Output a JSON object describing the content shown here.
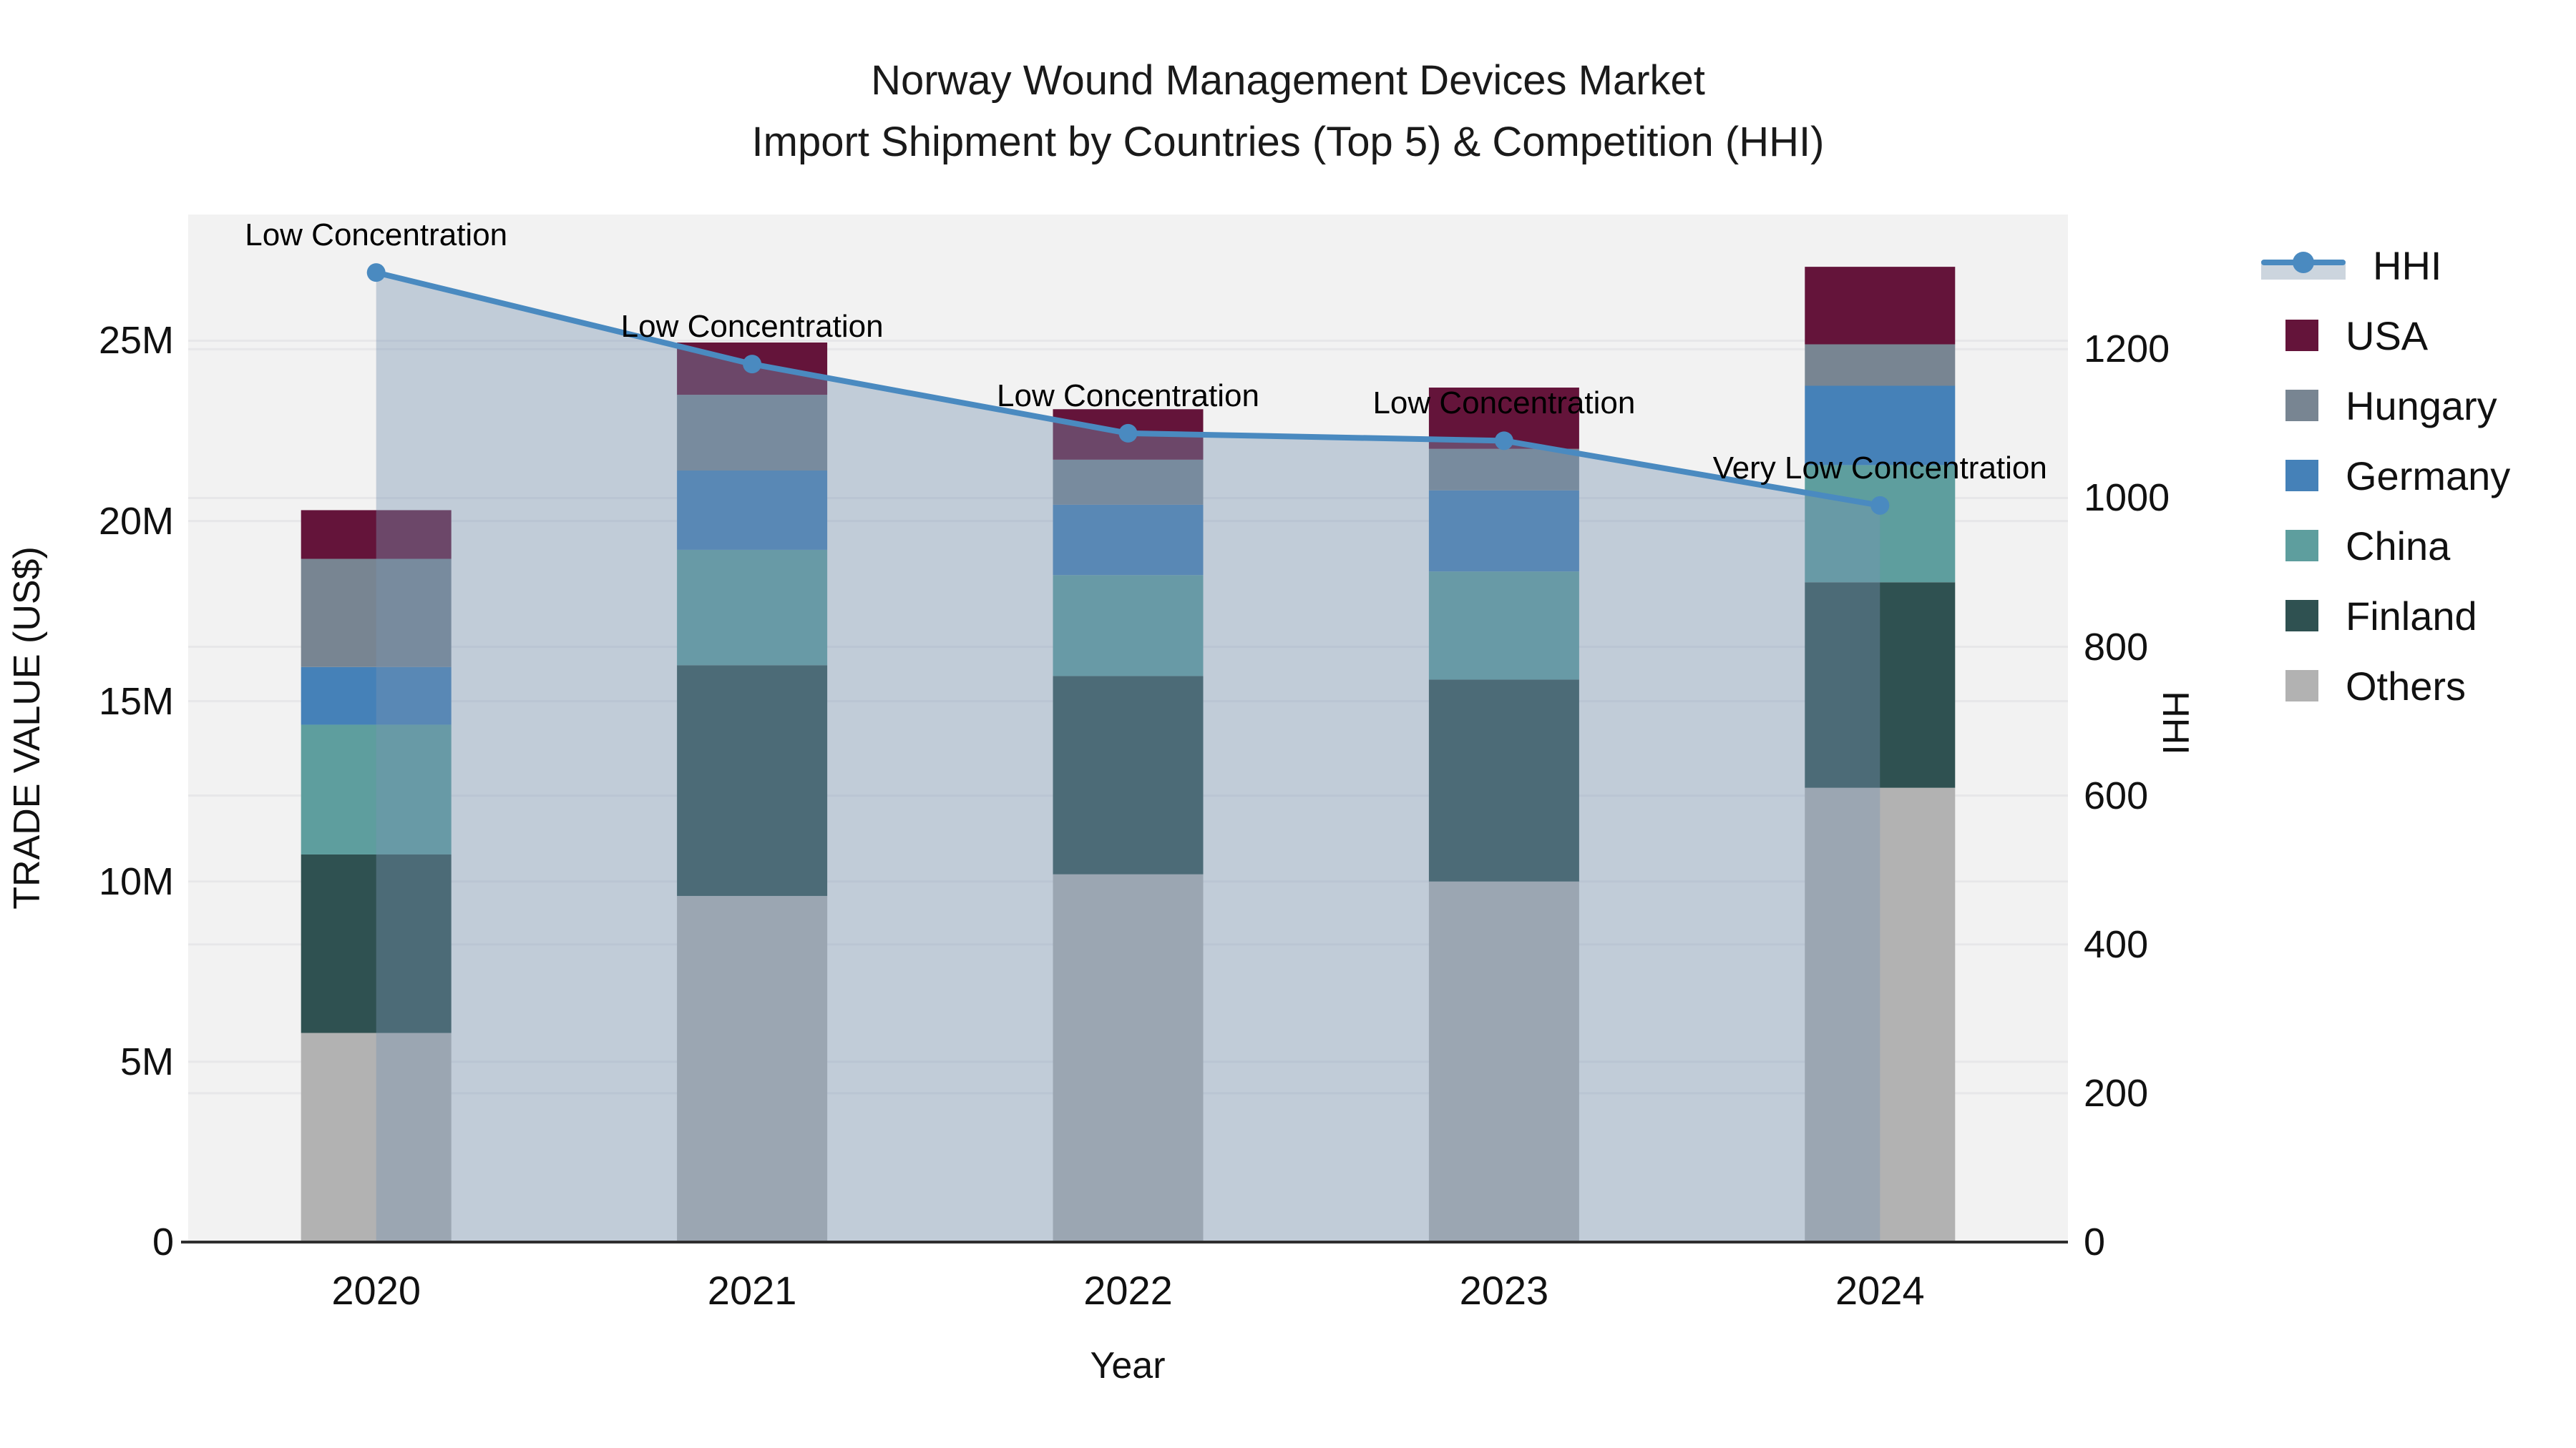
{
  "title": {
    "line1": "Norway Wound Management Devices Market",
    "line2": "Import Shipment by Countries (Top 5) & Competition (HHI)"
  },
  "axes": {
    "x": {
      "title": "Year",
      "ticks": [
        "2020",
        "2021",
        "2022",
        "2023",
        "2024"
      ]
    },
    "y": {
      "title": "TRADE VALUE (US$)",
      "ticks": [
        "0",
        "5M",
        "10M",
        "15M",
        "20M",
        "25M"
      ],
      "tick_values": [
        0,
        5000000,
        10000000,
        15000000,
        20000000,
        25000000
      ],
      "max": 28500000
    },
    "y2": {
      "title": "HHI",
      "ticks": [
        "0",
        "200",
        "400",
        "600",
        "800",
        "1000",
        "1200"
      ],
      "tick_values": [
        0,
        200,
        400,
        600,
        800,
        1000,
        1200
      ],
      "max": 1381
    }
  },
  "legend": {
    "items": [
      {
        "id": "hhi",
        "label": "HHI",
        "type": "line",
        "color": "#4a8ac0"
      },
      {
        "id": "usa",
        "label": "USA",
        "type": "square",
        "color": "#64143a"
      },
      {
        "id": "hungary",
        "label": "Hungary",
        "type": "square",
        "color": "#788592"
      },
      {
        "id": "germany",
        "label": "Germany",
        "type": "square",
        "color": "#4581b8"
      },
      {
        "id": "china",
        "label": "China",
        "type": "square",
        "color": "#5e9e9e"
      },
      {
        "id": "finland",
        "label": "Finland",
        "type": "square",
        "color": "#2f5151"
      },
      {
        "id": "others",
        "label": "Others",
        "type": "square",
        "color": "#b2b2b2"
      }
    ]
  },
  "colors": {
    "plot_background": "#f2f2f2",
    "grid_line": "#e7e7e9",
    "axis_line": "#2f2f2f",
    "hhi_line": "#4a8ac0",
    "hhi_area_fill": "rgba(119,148,178,0.40)",
    "text": "#111111"
  },
  "chart_data": {
    "type": "bar+line",
    "categories": [
      "2020",
      "2021",
      "2022",
      "2023",
      "2024"
    ],
    "stack_order_bottom_to_top": [
      "Others",
      "Finland",
      "China",
      "Germany",
      "Hungary",
      "USA"
    ],
    "series": [
      {
        "name": "USA",
        "color": "#64143a",
        "values": [
          1350000,
          1450000,
          1400000,
          1700000,
          2150000
        ]
      },
      {
        "name": "Hungary",
        "color": "#788592",
        "values": [
          3000000,
          2100000,
          1250000,
          1150000,
          1150000
        ]
      },
      {
        "name": "Germany",
        "color": "#4581b8",
        "values": [
          1600000,
          2200000,
          1950000,
          2250000,
          2200000
        ]
      },
      {
        "name": "China",
        "color": "#5e9e9e",
        "values": [
          3600000,
          3200000,
          2800000,
          3000000,
          3250000
        ]
      },
      {
        "name": "Finland",
        "color": "#2f5151",
        "values": [
          4950000,
          6400000,
          5500000,
          5600000,
          5700000
        ]
      },
      {
        "name": "Others",
        "color": "#b2b2b2",
        "values": [
          5800000,
          9600000,
          10200000,
          10000000,
          12600000
        ]
      }
    ],
    "bar_totals": [
      20300000,
      24950000,
      23100000,
      23700000,
      27050000
    ],
    "hhi": {
      "name": "HHI",
      "color": "#4a8ac0",
      "values": [
        1303,
        1180,
        1087,
        1077,
        990
      ]
    },
    "annotations": [
      {
        "year": "2020",
        "text": "Low Concentration"
      },
      {
        "year": "2021",
        "text": "Low Concentration"
      },
      {
        "year": "2022",
        "text": "Low Concentration"
      },
      {
        "year": "2023",
        "text": "Low Concentration"
      },
      {
        "year": "2024",
        "text": "Very Low Concentration"
      }
    ],
    "xlabel": "Year",
    "ylabel": "TRADE VALUE (US$)",
    "y2label": "HHI",
    "ylim": [
      0,
      28500000
    ],
    "y2lim": [
      0,
      1381
    ],
    "grid": true,
    "legend_position": "right"
  }
}
